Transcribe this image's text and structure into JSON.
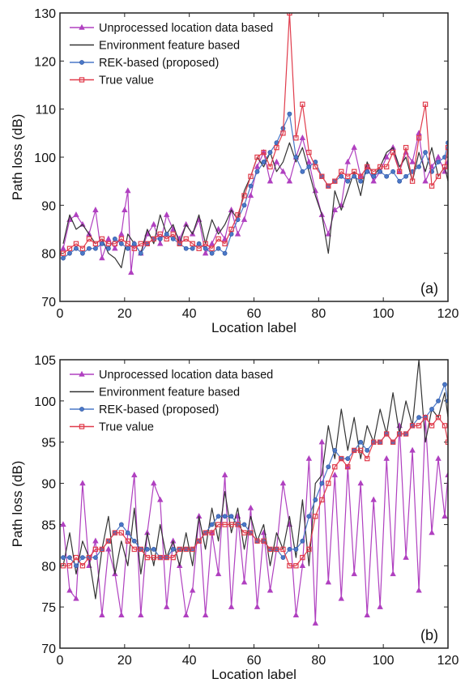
{
  "chart_data": [
    {
      "type": "line",
      "panel_label": "(a)",
      "xlabel": "Location label",
      "ylabel": "Path loss (dB)",
      "xlim": [
        0,
        120
      ],
      "ylim": [
        70,
        130
      ],
      "xticks": [
        0,
        20,
        40,
        60,
        80,
        100,
        120
      ],
      "yticks": [
        70,
        80,
        90,
        100,
        110,
        120,
        130
      ],
      "legend_position": "top-left",
      "grid": false,
      "series": [
        {
          "name": "Unprocessed location data based",
          "color": "#b040c0",
          "marker": "triangle",
          "x": [
            1,
            3,
            5,
            7,
            9,
            11,
            13,
            15,
            17,
            19,
            20,
            21,
            22,
            23,
            25,
            27,
            29,
            31,
            33,
            35,
            37,
            39,
            41,
            43,
            45,
            47,
            49,
            51,
            53,
            55,
            57,
            59,
            61,
            63,
            65,
            67,
            69,
            71,
            73,
            75,
            77,
            79,
            81,
            83,
            85,
            87,
            89,
            91,
            93,
            95,
            97,
            99,
            101,
            103,
            105,
            107,
            109,
            111,
            113,
            115,
            117,
            119,
            120
          ],
          "y": [
            81,
            87,
            88,
            86,
            84,
            89,
            79,
            83,
            81,
            84,
            89,
            93,
            76,
            82,
            80,
            84,
            86,
            82,
            88,
            85,
            83,
            86,
            84,
            87,
            80,
            82,
            85,
            83,
            89,
            84,
            87,
            92,
            98,
            101,
            95,
            99,
            97,
            95,
            100,
            104,
            99,
            93,
            88,
            84,
            89,
            90,
            99,
            102,
            96,
            98,
            95,
            97,
            100,
            102,
            97,
            101,
            99,
            105,
            95,
            98,
            100,
            97,
            99
          ]
        },
        {
          "name": "Environment feature based",
          "color": "#333333",
          "marker": "none",
          "x": [
            1,
            3,
            5,
            7,
            9,
            11,
            13,
            15,
            17,
            19,
            21,
            23,
            25,
            27,
            29,
            31,
            33,
            35,
            37,
            39,
            41,
            43,
            45,
            47,
            49,
            51,
            53,
            55,
            57,
            59,
            61,
            63,
            65,
            67,
            69,
            71,
            73,
            75,
            77,
            79,
            81,
            83,
            85,
            87,
            89,
            91,
            93,
            95,
            97,
            99,
            101,
            103,
            105,
            107,
            109,
            111,
            113,
            115,
            117,
            119,
            120
          ],
          "y": [
            82,
            88,
            85,
            86,
            84,
            82,
            83,
            80,
            79,
            77,
            84,
            82,
            80,
            85,
            82,
            88,
            84,
            86,
            82,
            86,
            84,
            88,
            82,
            87,
            84,
            86,
            89,
            87,
            93,
            96,
            100,
            98,
            101,
            97,
            99,
            103,
            99,
            102,
            97,
            92,
            88,
            80,
            93,
            89,
            93,
            97,
            92,
            99,
            96,
            98,
            101,
            102,
            98,
            100,
            95,
            101,
            97,
            102,
            96,
            98,
            95
          ]
        },
        {
          "name": "REK-based (proposed)",
          "color": "#4a78c8",
          "marker": "circle",
          "x": [
            1,
            3,
            5,
            7,
            9,
            11,
            13,
            15,
            17,
            19,
            21,
            23,
            25,
            27,
            29,
            31,
            33,
            35,
            37,
            39,
            41,
            43,
            45,
            47,
            49,
            51,
            53,
            55,
            57,
            59,
            61,
            63,
            65,
            67,
            69,
            71,
            73,
            75,
            77,
            79,
            81,
            83,
            85,
            87,
            89,
            91,
            93,
            95,
            97,
            99,
            101,
            103,
            105,
            107,
            109,
            111,
            113,
            115,
            117,
            119,
            120
          ],
          "y": [
            79,
            80,
            81,
            80,
            81,
            81,
            82,
            81,
            83,
            82,
            81,
            82,
            80,
            82,
            83,
            83,
            84,
            83,
            82,
            81,
            81,
            82,
            81,
            80,
            81,
            80,
            84,
            87,
            90,
            94,
            97,
            99,
            101,
            103,
            106,
            109,
            100,
            97,
            98,
            99,
            96,
            94,
            95,
            96,
            95,
            96,
            95,
            97,
            96,
            97,
            96,
            97,
            95,
            96,
            97,
            98,
            101,
            97,
            99,
            100,
            103
          ]
        },
        {
          "name": "True value",
          "color": "#e03c4c",
          "marker": "square",
          "x": [
            1,
            3,
            5,
            7,
            9,
            11,
            13,
            15,
            17,
            19,
            21,
            23,
            25,
            27,
            29,
            31,
            33,
            35,
            37,
            39,
            41,
            43,
            45,
            47,
            49,
            51,
            53,
            55,
            57,
            59,
            61,
            63,
            65,
            67,
            69,
            71,
            73,
            75,
            77,
            79,
            81,
            83,
            85,
            87,
            89,
            91,
            93,
            95,
            97,
            99,
            101,
            103,
            105,
            107,
            109,
            111,
            113,
            115,
            117,
            119,
            120
          ],
          "y": [
            80,
            81,
            82,
            81,
            83,
            82,
            83,
            82,
            82,
            83,
            82,
            81,
            82,
            82,
            83,
            84,
            83,
            84,
            82,
            83,
            82,
            81,
            82,
            81,
            83,
            82,
            85,
            88,
            92,
            96,
            100,
            101,
            98,
            102,
            105,
            130,
            104,
            111,
            101,
            98,
            96,
            94,
            95,
            97,
            96,
            97,
            96,
            98,
            97,
            98,
            98,
            101,
            97,
            102,
            95,
            104,
            111,
            94,
            96,
            98,
            102
          ]
        }
      ]
    },
    {
      "type": "line",
      "panel_label": "(b)",
      "xlabel": "Location label",
      "ylabel": "Path loss (dB)",
      "xlim": [
        0,
        120
      ],
      "ylim": [
        70,
        105
      ],
      "xticks": [
        0,
        20,
        40,
        60,
        80,
        100,
        120
      ],
      "yticks": [
        70,
        75,
        80,
        85,
        90,
        95,
        100,
        105
      ],
      "legend_position": "top-left",
      "grid": false,
      "series": [
        {
          "name": "Unprocessed location data based",
          "color": "#b040c0",
          "marker": "triangle",
          "x": [
            1,
            3,
            5,
            7,
            9,
            11,
            13,
            15,
            17,
            19,
            21,
            23,
            25,
            27,
            29,
            31,
            33,
            35,
            37,
            39,
            41,
            43,
            45,
            47,
            49,
            51,
            53,
            55,
            57,
            59,
            61,
            63,
            65,
            67,
            69,
            71,
            73,
            75,
            77,
            79,
            81,
            83,
            85,
            87,
            89,
            91,
            93,
            95,
            97,
            99,
            101,
            103,
            105,
            107,
            109,
            111,
            113,
            115,
            117,
            119,
            120
          ],
          "y": [
            85,
            77,
            76,
            90,
            80,
            83,
            74,
            82,
            79,
            74,
            84,
            91,
            74,
            84,
            90,
            88,
            75,
            83,
            80,
            74,
            77,
            86,
            74,
            84,
            79,
            91,
            75,
            86,
            78,
            87,
            75,
            84,
            77,
            82,
            90,
            85,
            74,
            80,
            93,
            73,
            95,
            78,
            91,
            76,
            92,
            79,
            90,
            74,
            88,
            75,
            93,
            79,
            97,
            81,
            94,
            77,
            98,
            84,
            93,
            86,
            91
          ]
        },
        {
          "name": "Environment feature based",
          "color": "#333333",
          "marker": "none",
          "x": [
            1,
            3,
            5,
            7,
            9,
            11,
            13,
            15,
            17,
            19,
            21,
            23,
            25,
            27,
            29,
            31,
            33,
            35,
            37,
            39,
            41,
            43,
            45,
            47,
            49,
            51,
            53,
            55,
            57,
            59,
            61,
            63,
            65,
            67,
            69,
            71,
            73,
            75,
            77,
            79,
            81,
            83,
            85,
            87,
            89,
            91,
            93,
            95,
            97,
            99,
            101,
            103,
            105,
            107,
            109,
            111,
            113,
            115,
            117,
            119,
            120
          ],
          "y": [
            80,
            84,
            79,
            83,
            81,
            76,
            82,
            86,
            79,
            83,
            80,
            87,
            79,
            84,
            80,
            85,
            81,
            83,
            80,
            84,
            80,
            86,
            82,
            87,
            83,
            89,
            84,
            87,
            82,
            86,
            83,
            85,
            80,
            84,
            82,
            86,
            81,
            88,
            80,
            90,
            91,
            97,
            93,
            99,
            94,
            98,
            93,
            97,
            95,
            99,
            96,
            101,
            96,
            100,
            97,
            105,
            95,
            99,
            98,
            101,
            98
          ]
        },
        {
          "name": "REK-based (proposed)",
          "color": "#4a78c8",
          "marker": "circle",
          "x": [
            1,
            3,
            5,
            7,
            9,
            11,
            13,
            15,
            17,
            19,
            21,
            23,
            25,
            27,
            29,
            31,
            33,
            35,
            37,
            39,
            41,
            43,
            45,
            47,
            49,
            51,
            53,
            55,
            57,
            59,
            61,
            63,
            65,
            67,
            69,
            71,
            73,
            75,
            77,
            79,
            81,
            83,
            85,
            87,
            89,
            91,
            93,
            95,
            97,
            99,
            101,
            103,
            105,
            107,
            109,
            111,
            113,
            115,
            117,
            119,
            120
          ],
          "y": [
            81,
            81,
            80,
            81,
            81,
            81,
            82,
            83,
            84,
            85,
            84,
            83,
            82,
            82,
            82,
            81,
            81,
            82,
            82,
            82,
            82,
            83,
            84,
            85,
            86,
            86,
            86,
            85,
            85,
            84,
            83,
            83,
            82,
            82,
            81,
            82,
            82,
            83,
            86,
            88,
            90,
            92,
            94,
            93,
            93,
            94,
            95,
            94,
            95,
            95,
            96,
            95,
            96,
            96,
            97,
            98,
            98,
            99,
            100,
            102,
            100
          ]
        },
        {
          "name": "True value",
          "color": "#e03c4c",
          "marker": "square",
          "x": [
            1,
            3,
            5,
            7,
            9,
            11,
            13,
            15,
            17,
            19,
            21,
            23,
            25,
            27,
            29,
            31,
            33,
            35,
            37,
            39,
            41,
            43,
            45,
            47,
            49,
            51,
            53,
            55,
            57,
            59,
            61,
            63,
            65,
            67,
            69,
            71,
            73,
            75,
            77,
            79,
            81,
            83,
            85,
            87,
            89,
            91,
            93,
            95,
            97,
            99,
            101,
            103,
            105,
            107,
            109,
            111,
            113,
            115,
            117,
            119,
            120
          ],
          "y": [
            80,
            80,
            81,
            80,
            81,
            82,
            82,
            83,
            84,
            84,
            83,
            82,
            82,
            81,
            81,
            81,
            81,
            81,
            82,
            82,
            82,
            83,
            84,
            84,
            85,
            85,
            85,
            85,
            84,
            84,
            83,
            83,
            82,
            82,
            82,
            80,
            80,
            81,
            82,
            86,
            88,
            90,
            92,
            93,
            92,
            94,
            94,
            93,
            95,
            95,
            96,
            95,
            96,
            96,
            97,
            97,
            98,
            97,
            98,
            97,
            95
          ]
        }
      ]
    }
  ]
}
